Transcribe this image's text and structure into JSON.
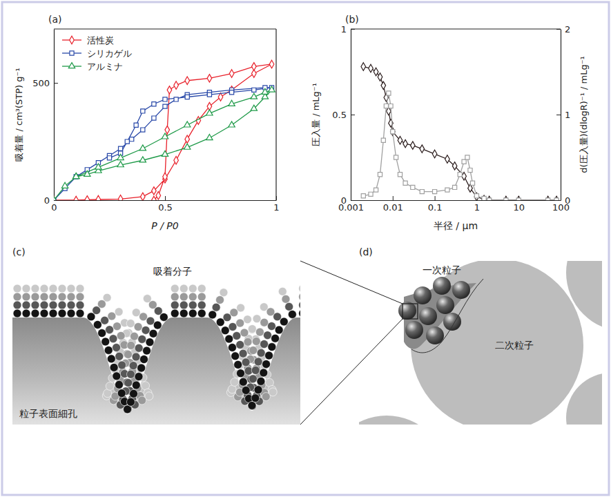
{
  "chart_data": [
    {
      "type": "line",
      "title": "(a)",
      "x_label": "P / P0",
      "y_label": "吸着量 / cm³(STP) g⁻¹",
      "xlim": [
        0,
        1
      ],
      "xticks": [
        0,
        0.5,
        1
      ],
      "ylim": [
        0,
        730
      ],
      "yticks": [
        0,
        500
      ],
      "legend": "upper left",
      "series": [
        {
          "name": "活性炭",
          "color": "#e8202a",
          "marker": "diamond",
          "x": [
            0,
            0.1,
            0.15,
            0.2,
            0.3,
            0.4,
            0.45,
            0.5,
            0.55,
            0.6,
            0.65,
            0.7,
            0.75,
            0.8,
            0.9,
            0.98,
            0.9,
            0.8,
            0.7,
            0.6,
            0.55,
            0.52,
            0.51,
            0.5,
            0.47,
            0.45
          ],
          "values": [
            0,
            0,
            2,
            3,
            5,
            15,
            40,
            90,
            170,
            260,
            340,
            400,
            440,
            470,
            540,
            580,
            570,
            540,
            520,
            510,
            490,
            470,
            300,
            100,
            20,
            0
          ]
        },
        {
          "name": "シリカゲル",
          "color": "#2848a8",
          "marker": "square",
          "x": [
            0,
            0.05,
            0.1,
            0.15,
            0.2,
            0.25,
            0.3,
            0.35,
            0.4,
            0.45,
            0.5,
            0.55,
            0.6,
            0.7,
            0.8,
            0.95,
            0.98,
            0.9,
            0.8,
            0.7,
            0.6,
            0.5,
            0.45,
            0.4,
            0.37,
            0.33,
            0.3,
            0.25
          ],
          "values": [
            0,
            50,
            100,
            130,
            160,
            190,
            220,
            260,
            300,
            350,
            400,
            430,
            450,
            460,
            470,
            480,
            480,
            470,
            460,
            450,
            440,
            430,
            410,
            380,
            320,
            250,
            200,
            180
          ]
        },
        {
          "name": "アルミナ",
          "color": "#1e9a48",
          "marker": "triangle",
          "x": [
            0,
            0.05,
            0.1,
            0.15,
            0.2,
            0.3,
            0.4,
            0.5,
            0.6,
            0.7,
            0.8,
            0.9,
            0.95,
            0.98,
            0.95,
            0.9,
            0.8,
            0.7,
            0.6,
            0.5,
            0.4,
            0.3,
            0.2,
            0.1
          ],
          "values": [
            0,
            60,
            100,
            110,
            125,
            150,
            170,
            195,
            225,
            265,
            320,
            390,
            440,
            470,
            460,
            440,
            410,
            370,
            320,
            270,
            220,
            180,
            140,
            100
          ]
        }
      ]
    },
    {
      "type": "line",
      "title": "(b)",
      "x_label": "半径 / μm",
      "y_label": "圧入量 / mLg⁻¹",
      "y2_label": "d(圧入量)(dlogR)⁻¹ / mLg⁻¹",
      "log": "x",
      "xlim": [
        0.001,
        100
      ],
      "xticks": [
        0.001,
        0.01,
        0.1,
        1,
        10,
        100
      ],
      "ylim": [
        0,
        1
      ],
      "yticks": [
        0,
        0.5,
        1
      ],
      "y2lim": [
        0,
        2
      ],
      "y2ticks": [
        0,
        1,
        2
      ],
      "series": [
        {
          "color": "#2a1c1c",
          "marker": "diamond",
          "x": [
            0.002,
            0.003,
            0.004,
            0.005,
            0.006,
            0.007,
            0.008,
            0.009,
            0.01,
            0.015,
            0.02,
            0.03,
            0.05,
            0.1,
            0.2,
            0.3,
            0.5,
            0.7,
            1,
            1.5,
            2,
            5,
            10,
            50,
            80
          ],
          "values": [
            0.78,
            0.77,
            0.75,
            0.72,
            0.67,
            0.6,
            0.52,
            0.45,
            0.4,
            0.35,
            0.33,
            0.32,
            0.3,
            0.27,
            0.24,
            0.2,
            0.14,
            0.07,
            0.02,
            0.005,
            0,
            0,
            0,
            0,
            0
          ]
        },
        {
          "color": "#a0a0a0",
          "marker": "square",
          "axis": "y2",
          "x": [
            0.002,
            0.003,
            0.004,
            0.005,
            0.006,
            0.007,
            0.008,
            0.009,
            0.01,
            0.012,
            0.015,
            0.02,
            0.03,
            0.05,
            0.1,
            0.2,
            0.3,
            0.4,
            0.5,
            0.6,
            0.7,
            0.8,
            1,
            1.5,
            2,
            5,
            10,
            50,
            80
          ],
          "values": [
            0.05,
            0.07,
            0.12,
            0.3,
            0.7,
            1.1,
            1.25,
            1.1,
            0.8,
            0.5,
            0.3,
            0.2,
            0.15,
            0.1,
            0.1,
            0.12,
            0.15,
            0.3,
            0.45,
            0.5,
            0.35,
            0.2,
            0.05,
            0.02,
            0,
            0,
            0,
            0,
            0
          ]
        }
      ]
    }
  ],
  "diagrams": [
    {
      "label": "(c)",
      "texts": [
        "吸着分子",
        "粒子表面細孔"
      ]
    },
    {
      "label": "(d)",
      "texts": [
        "一次粒子",
        "二次粒子"
      ]
    }
  ]
}
